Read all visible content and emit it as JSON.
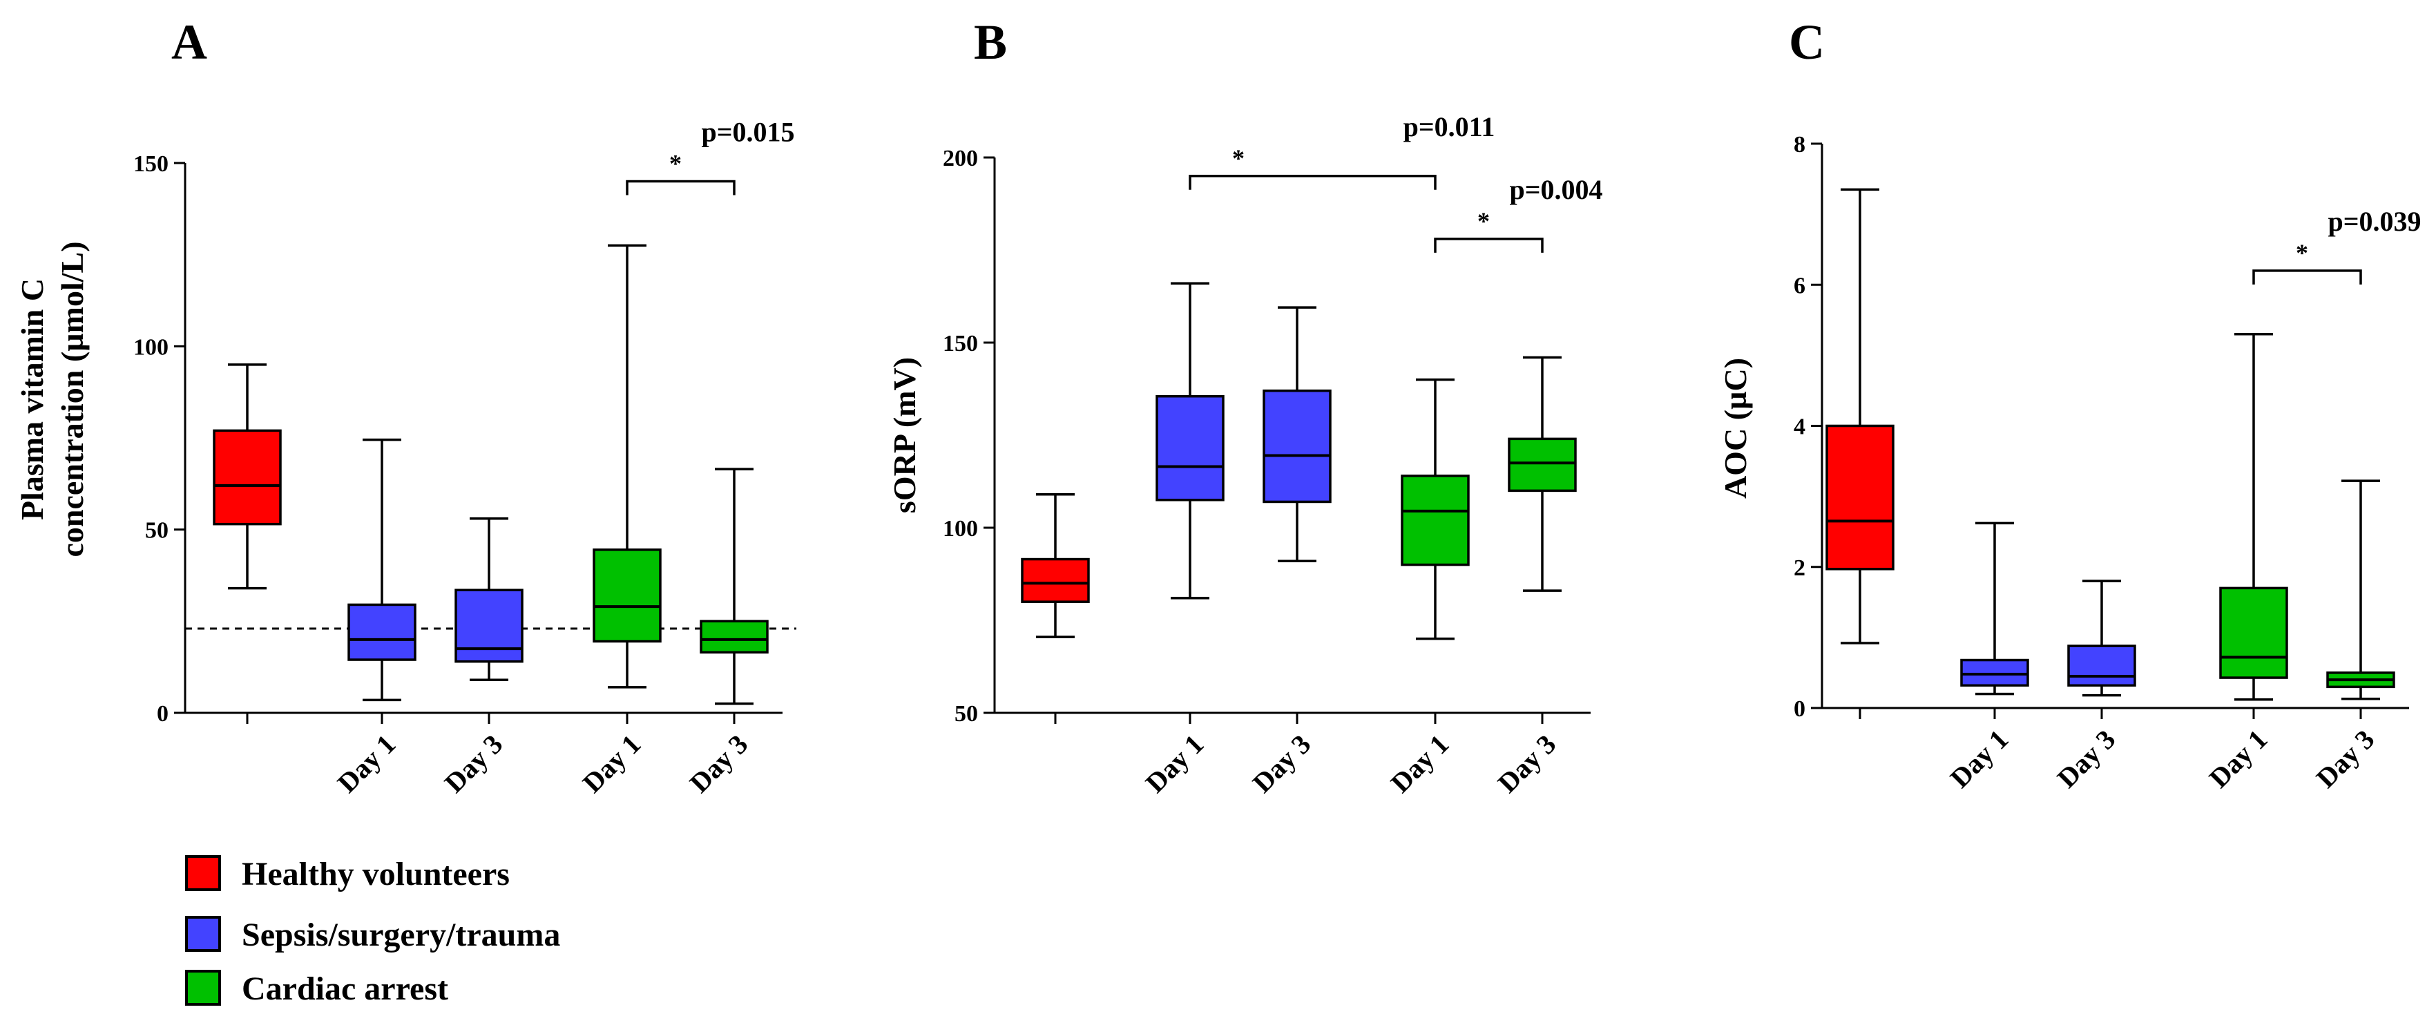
{
  "chart_data": [
    {
      "type": "box",
      "panel": "A",
      "ylabel_lines": [
        "Plasma vitamin C",
        "concentration (µmol/L)"
      ],
      "ylim": [
        0,
        150
      ],
      "yticks": [
        "0",
        "50",
        "100",
        "150"
      ],
      "categories": [
        "",
        "Day 1",
        "Day 3",
        "Day 1",
        "Day 3"
      ],
      "groups": [
        "Healthy volunteers",
        "Sepsis/surgery/trauma",
        "Sepsis/surgery/trauma",
        "Cardiac arrest",
        "Cardiac arrest"
      ],
      "boxes": [
        {
          "min": 34,
          "q1": 51.5,
          "median": 62,
          "q3": 77,
          "max": 95
        },
        {
          "min": 3.5,
          "q1": 14.5,
          "median": 20,
          "q3": 29.5,
          "max": 74.5
        },
        {
          "min": 9,
          "q1": 14,
          "median": 17.5,
          "q3": 33.5,
          "max": 53
        },
        {
          "min": 7,
          "q1": 19.5,
          "median": 29,
          "q3": 44.5,
          "max": 127.5
        },
        {
          "min": 2.5,
          "q1": 16.5,
          "median": 20,
          "q3": 25,
          "max": 66.5
        }
      ],
      "reference_line": 23,
      "annotations": [
        {
          "from": 3,
          "to": 4,
          "y": 145,
          "star": "*",
          "label": "p=0.015"
        }
      ]
    },
    {
      "type": "box",
      "panel": "B",
      "ylabel_lines": [
        "sORP (mV)"
      ],
      "ylim": [
        50,
        200
      ],
      "yticks": [
        "50",
        "100",
        "150",
        "200"
      ],
      "categories": [
        "",
        "Day 1",
        "Day 3",
        "Day 1",
        "Day 3"
      ],
      "groups": [
        "Healthy volunteers",
        "Sepsis/surgery/trauma",
        "Sepsis/surgery/trauma",
        "Cardiac arrest",
        "Cardiac arrest"
      ],
      "boxes": [
        {
          "min": 70.5,
          "q1": 80,
          "median": 85,
          "q3": 91.5,
          "max": 109
        },
        {
          "min": 81,
          "q1": 107.5,
          "median": 116.5,
          "q3": 135.5,
          "max": 166
        },
        {
          "min": 91,
          "q1": 107,
          "median": 119.5,
          "q3": 137,
          "max": 159.5
        },
        {
          "min": 70,
          "q1": 90,
          "median": 104.5,
          "q3": 114,
          "max": 140
        },
        {
          "min": 83,
          "q1": 110,
          "median": 117.5,
          "q3": 124,
          "max": 146
        }
      ],
      "annotations": [
        {
          "from": 1,
          "to": 3,
          "y": 195,
          "star": "*",
          "label": "p=0.011"
        },
        {
          "from": 3,
          "to": 4,
          "y": 178,
          "star": "*",
          "label": "p=0.004"
        }
      ]
    },
    {
      "type": "box",
      "panel": "C",
      "ylabel_lines": [
        "AOC (µC)"
      ],
      "ylim": [
        0,
        8
      ],
      "yticks": [
        "0",
        "2",
        "4",
        "6",
        "8"
      ],
      "categories": [
        "",
        "Day 1",
        "Day 3",
        "Day 1",
        "Day 3"
      ],
      "groups": [
        "Healthy volunteers",
        "Sepsis/surgery/trauma",
        "Sepsis/surgery/trauma",
        "Cardiac arrest",
        "Cardiac arrest"
      ],
      "boxes": [
        {
          "min": 0.92,
          "q1": 1.97,
          "median": 2.65,
          "q3": 4.0,
          "max": 7.35
        },
        {
          "min": 0.2,
          "q1": 0.32,
          "median": 0.48,
          "q3": 0.68,
          "max": 2.62
        },
        {
          "min": 0.18,
          "q1": 0.32,
          "median": 0.45,
          "q3": 0.88,
          "max": 1.8
        },
        {
          "min": 0.12,
          "q1": 0.43,
          "median": 0.72,
          "q3": 1.7,
          "max": 5.3
        },
        {
          "min": 0.13,
          "q1": 0.3,
          "median": 0.4,
          "q3": 0.5,
          "max": 3.22
        }
      ],
      "annotations": [
        {
          "from": 3,
          "to": 4,
          "y": 6.2,
          "star": "*",
          "label": "p=0.039"
        }
      ]
    }
  ],
  "legend": [
    {
      "label": "Healthy volunteers",
      "color": "#ff0000"
    },
    {
      "label": "Sepsis/surgery/trauma",
      "color": "#4343ff"
    },
    {
      "label": "Cardiac arrest",
      "color": "#00c000"
    }
  ]
}
